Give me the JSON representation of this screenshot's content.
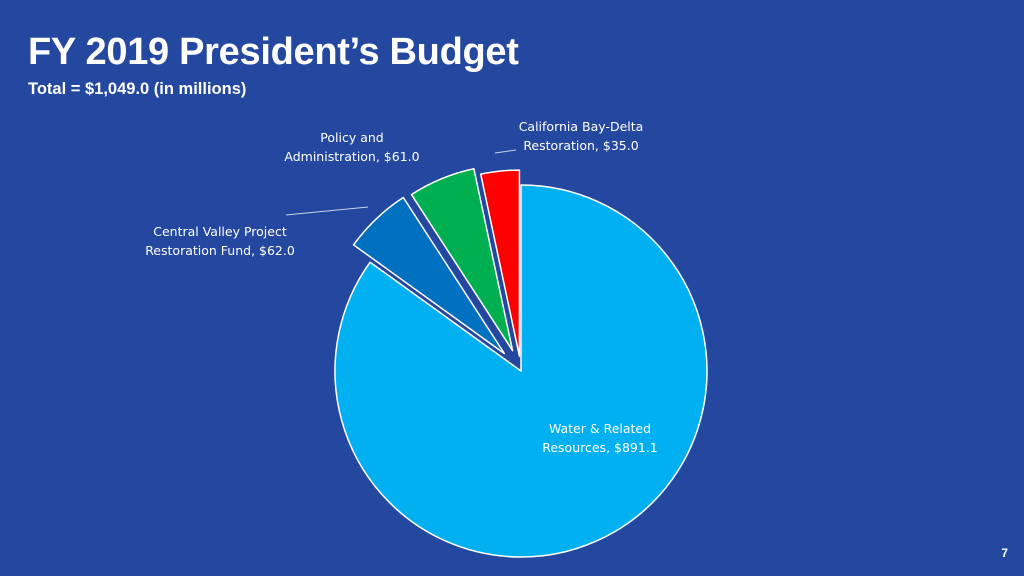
{
  "slide": {
    "title": "FY 2019 President’s Budget",
    "subtitle": "Total = $1,049.0  (in millions)",
    "page_number": "7"
  },
  "colors": {
    "background": "#2447a0",
    "label_text": "#ffffff",
    "leader_line": "#c9d3ea"
  },
  "chart_data": {
    "type": "pie",
    "exploded": true,
    "data_labels": "category-name-and-value",
    "slices": [
      {
        "name": "Water & Related Resources",
        "value": 891.1,
        "color": "#00b0f0",
        "label_lines": [
          "Water & Related",
          "Resources,  $891.1"
        ]
      },
      {
        "name": "Central Valley Project Restoration Fund",
        "value": 62.0,
        "color": "#0070c0",
        "label_lines": [
          "Central Valley Project",
          "Restoration Fund,  $62.0"
        ]
      },
      {
        "name": "Policy and Administration",
        "value": 61.0,
        "color": "#00b050",
        "label_lines": [
          "Policy and",
          "Administration,  $61.0"
        ]
      },
      {
        "name": "California Bay-Delta Restoration",
        "value": 35.0,
        "color": "#ff0000",
        "label_lines": [
          "California Bay-Delta",
          "Restoration,  $35.0"
        ]
      }
    ]
  }
}
